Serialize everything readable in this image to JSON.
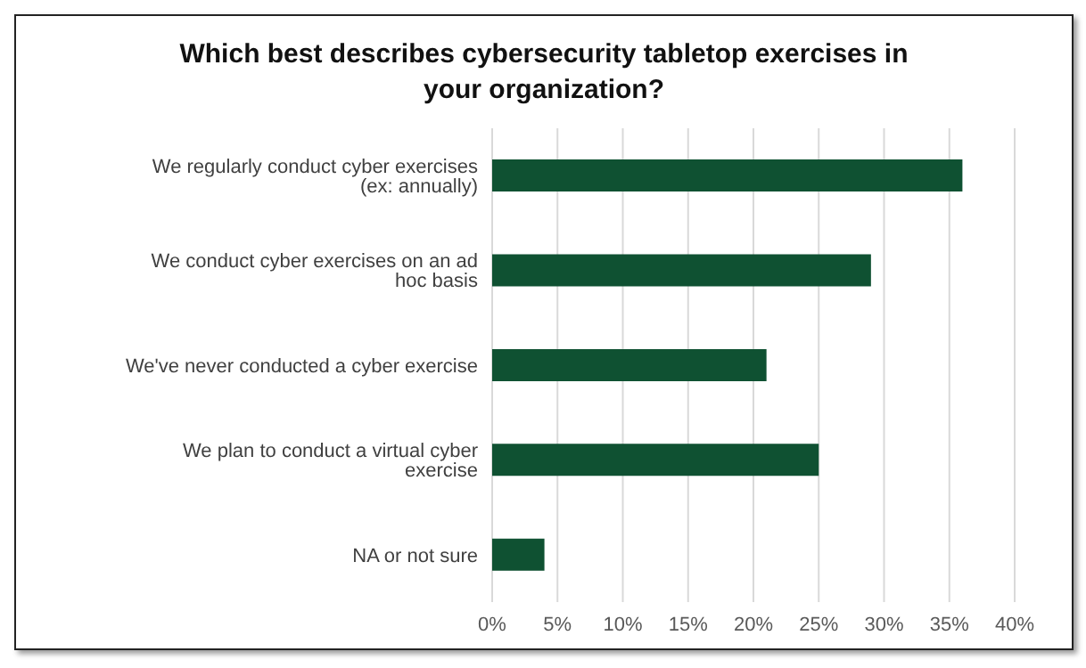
{
  "chart_data": {
    "type": "bar",
    "orientation": "horizontal",
    "title": "Which best describes cybersecurity tabletop exercises in your organization?",
    "categories": [
      "We regularly conduct cyber exercises (ex: annually)",
      "We conduct cyber exercises on an ad hoc basis",
      "We've never conducted a cyber exercise",
      "We plan to conduct a virtual cyber exercise",
      "NA or not sure"
    ],
    "values": [
      36,
      29,
      21,
      25,
      4
    ],
    "color": "#0f5132",
    "xlim": [
      0,
      40
    ],
    "xticks": [
      {
        "value": 0,
        "label": "0%"
      },
      {
        "value": 5,
        "label": "5%"
      },
      {
        "value": 10,
        "label": "10%"
      },
      {
        "value": 15,
        "label": "15%"
      },
      {
        "value": 20,
        "label": "20%"
      },
      {
        "value": 25,
        "label": "25%"
      },
      {
        "value": 30,
        "label": "30%"
      },
      {
        "value": 35,
        "label": "35%"
      },
      {
        "value": 40,
        "label": "40%"
      }
    ],
    "grid": "x"
  }
}
